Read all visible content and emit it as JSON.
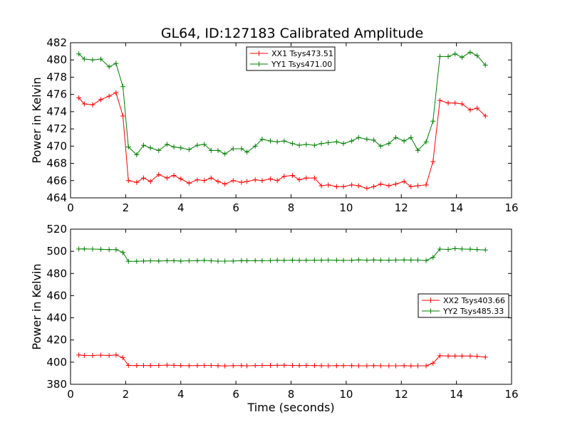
{
  "title": "GL64, ID:127183 Calibrated Amplitude",
  "chart_data": [
    {
      "type": "line",
      "title": "GL64, ID:127183 Calibrated Amplitude",
      "xlabel": "",
      "ylabel": "Power in Kelvin",
      "xlim": [
        0,
        16
      ],
      "ylim": [
        464,
        482
      ],
      "xticks": [
        "0",
        "2",
        "4",
        "6",
        "8",
        "10",
        "12",
        "14",
        "16"
      ],
      "yticks": [
        "464",
        "466",
        "468",
        "470",
        "472",
        "474",
        "476",
        "478",
        "480",
        "482"
      ],
      "legend_position": "upper-center",
      "grid": false,
      "x": [
        0.3,
        0.5,
        0.8,
        1.1,
        1.4,
        1.65,
        1.9,
        2.1,
        2.4,
        2.65,
        2.9,
        3.2,
        3.5,
        3.75,
        4.0,
        4.3,
        4.6,
        4.85,
        5.1,
        5.35,
        5.6,
        5.9,
        6.2,
        6.4,
        6.7,
        6.95,
        7.25,
        7.5,
        7.75,
        8.05,
        8.3,
        8.55,
        8.85,
        9.1,
        9.35,
        9.65,
        9.9,
        10.2,
        10.45,
        10.75,
        11.0,
        11.25,
        11.55,
        11.8,
        12.1,
        12.35,
        12.6,
        12.9,
        13.15,
        13.4,
        13.7,
        13.95,
        14.2,
        14.5,
        14.75,
        15.05
      ],
      "series": [
        {
          "name": "XX1 Tsys473.51",
          "color": "#ff0000",
          "values": [
            475.6,
            474.9,
            474.8,
            475.4,
            475.8,
            476.2,
            473.5,
            466.0,
            465.8,
            466.3,
            465.9,
            466.7,
            466.3,
            466.6,
            466.2,
            465.7,
            466.1,
            466.0,
            466.3,
            465.9,
            465.6,
            466.0,
            465.8,
            465.9,
            466.1,
            466.0,
            466.2,
            466.0,
            466.5,
            466.6,
            466.1,
            466.3,
            466.3,
            465.4,
            465.5,
            465.3,
            465.3,
            465.5,
            465.4,
            465.1,
            465.3,
            465.6,
            465.4,
            465.6,
            465.9,
            465.3,
            465.4,
            465.5,
            468.2,
            475.3,
            475.0,
            475.0,
            474.9,
            474.2,
            474.4,
            473.5
          ]
        },
        {
          "name": "YY1 Tsys471.00",
          "color": "#008000",
          "values": [
            480.7,
            480.1,
            480.0,
            480.1,
            479.2,
            479.6,
            476.9,
            469.9,
            469.0,
            470.1,
            469.8,
            469.5,
            470.2,
            469.9,
            469.8,
            469.6,
            470.1,
            470.2,
            469.5,
            469.5,
            469.1,
            469.7,
            469.7,
            469.3,
            470.0,
            470.8,
            470.6,
            470.5,
            470.6,
            470.3,
            470.1,
            470.2,
            470.1,
            470.3,
            470.4,
            470.5,
            470.3,
            470.6,
            471.0,
            470.8,
            470.7,
            470.0,
            470.3,
            471.0,
            470.6,
            471.0,
            469.5,
            470.5,
            472.9,
            480.4,
            480.4,
            480.7,
            480.3,
            480.9,
            480.5,
            479.4
          ]
        }
      ]
    },
    {
      "type": "line",
      "title": "",
      "xlabel": "Time (seconds)",
      "ylabel": "Power in Kelvin",
      "xlim": [
        0,
        16
      ],
      "ylim": [
        380,
        520
      ],
      "xticks": [
        "0",
        "2",
        "4",
        "6",
        "8",
        "10",
        "12",
        "14",
        "16"
      ],
      "yticks": [
        "380",
        "400",
        "420",
        "440",
        "460",
        "480",
        "500",
        "520"
      ],
      "legend_position": "right",
      "grid": false,
      "x": [
        0.3,
        0.5,
        0.8,
        1.1,
        1.4,
        1.65,
        1.9,
        2.1,
        2.4,
        2.65,
        2.9,
        3.2,
        3.5,
        3.75,
        4.0,
        4.3,
        4.6,
        4.85,
        5.1,
        5.35,
        5.6,
        5.9,
        6.2,
        6.4,
        6.7,
        6.95,
        7.25,
        7.5,
        7.75,
        8.05,
        8.3,
        8.55,
        8.85,
        9.1,
        9.35,
        9.65,
        9.9,
        10.2,
        10.45,
        10.75,
        11.0,
        11.25,
        11.55,
        11.8,
        12.1,
        12.35,
        12.6,
        12.9,
        13.15,
        13.4,
        13.7,
        13.95,
        14.2,
        14.5,
        14.75,
        15.05
      ],
      "series": [
        {
          "name": "XX2 Tsys403.66",
          "color": "#ff0000",
          "values": [
            406.5,
            406.0,
            406.0,
            406.3,
            406.0,
            406.5,
            404.0,
            397.0,
            396.9,
            397.0,
            396.9,
            397.0,
            397.3,
            397.1,
            396.9,
            396.8,
            396.9,
            397.0,
            397.0,
            396.8,
            396.6,
            396.8,
            396.9,
            396.7,
            396.9,
            397.0,
            397.0,
            397.1,
            397.2,
            397.0,
            396.9,
            397.0,
            396.9,
            396.8,
            396.7,
            396.8,
            396.8,
            396.8,
            396.7,
            396.7,
            396.8,
            396.7,
            396.7,
            396.7,
            396.8,
            396.6,
            396.7,
            396.7,
            399.0,
            405.8,
            405.5,
            405.5,
            405.5,
            405.5,
            405.3,
            404.6
          ]
        },
        {
          "name": "YY2 Tsys485.33",
          "color": "#008000",
          "values": [
            502.1,
            502.2,
            502.0,
            501.8,
            501.5,
            501.5,
            499.0,
            491.0,
            491.0,
            491.2,
            491.4,
            491.3,
            491.5,
            491.5,
            491.2,
            491.4,
            491.6,
            491.8,
            491.4,
            491.1,
            491.1,
            491.2,
            491.6,
            491.5,
            491.6,
            491.6,
            491.7,
            492.0,
            491.8,
            492.0,
            491.8,
            491.9,
            492.0,
            492.0,
            492.1,
            492.0,
            491.8,
            491.9,
            492.3,
            492.0,
            492.2,
            492.0,
            492.0,
            492.1,
            492.2,
            492.1,
            492.1,
            491.7,
            494.5,
            502.0,
            501.7,
            502.5,
            502.1,
            501.9,
            501.6,
            501.2
          ]
        }
      ]
    }
  ]
}
